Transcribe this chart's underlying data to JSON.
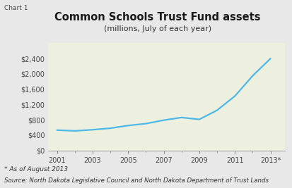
{
  "title": "Common Schools Trust Fund assets",
  "subtitle": "(millions, July of each year)",
  "chart_label": "Chart 1",
  "footnote1": "* As of August 2013",
  "footnote2": "Source: North Dakota Legislative Council and North Dakota Department of Trust Lands",
  "x": [
    2001,
    2002,
    2003,
    2004,
    2005,
    2006,
    2007,
    2008,
    2009,
    2010,
    2011,
    2012,
    2013
  ],
  "y": [
    530,
    510,
    540,
    580,
    650,
    700,
    790,
    860,
    810,
    1050,
    1420,
    1950,
    2400
  ],
  "line_color": "#4db8e8",
  "line_width": 1.6,
  "fig_bg_color": "#e8e8e8",
  "plot_bg_color": "#eef0df",
  "ylim": [
    0,
    2800
  ],
  "yticks": [
    0,
    400,
    800,
    1200,
    1600,
    2000,
    2400
  ],
  "ytick_labels": [
    "$0",
    "$400",
    "$800",
    "$1,200",
    "$1,600",
    "$2,000",
    "$2,400"
  ],
  "xticks": [
    2001,
    2003,
    2005,
    2007,
    2009,
    2011,
    2013
  ],
  "xtick_labels": [
    "2001",
    "2003",
    "2005",
    "2007",
    "2009",
    "2011",
    "2013*"
  ],
  "xlim": [
    2000.5,
    2013.8
  ],
  "title_fontsize": 10.5,
  "subtitle_fontsize": 8,
  "tick_fontsize": 7,
  "footnote_fontsize": 6.5
}
